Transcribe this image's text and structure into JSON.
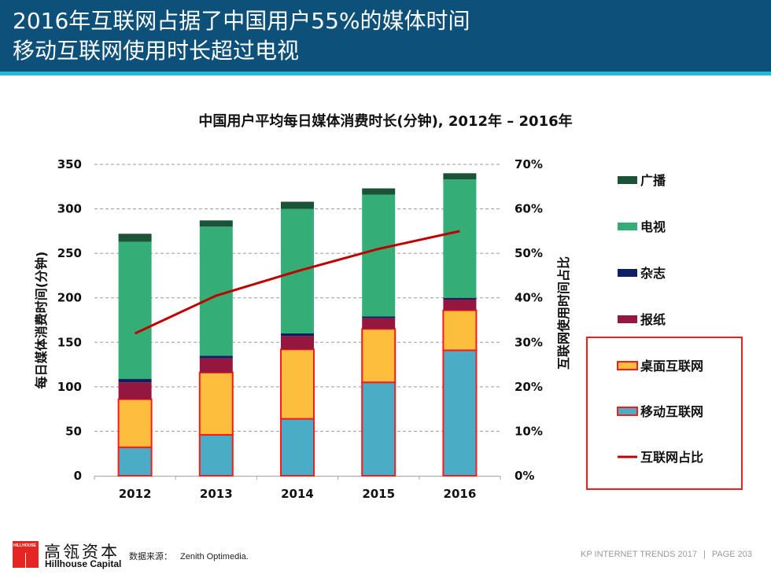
{
  "header": {
    "title_line1": "2016年互联网占据了中国用户55%的媒体时间",
    "title_line2": "移动互联网使用时长超过电视"
  },
  "chart_data": {
    "type": "bar",
    "stacked": true,
    "title": "中国用户平均每日媒体消费时长(分钟), 2012年  –  2016年",
    "categories": [
      "2012",
      "2013",
      "2014",
      "2015",
      "2016"
    ],
    "ylabel": "每日媒体消费时间(分钟)",
    "y2label": "互联网使用时间占比",
    "ylim": [
      0,
      350
    ],
    "yticks": [
      0,
      50,
      100,
      150,
      200,
      250,
      300,
      350
    ],
    "y2lim": [
      0,
      70
    ],
    "y2ticks": [
      "0%",
      "10%",
      "20%",
      "30%",
      "40%",
      "50%",
      "60%",
      "70%"
    ],
    "grid": true,
    "legend_position": "right",
    "series": [
      {
        "name": "移动互联网",
        "color": "#4bacc6",
        "outlined": true,
        "values": [
          32,
          46,
          64,
          105,
          141
        ]
      },
      {
        "name": "桌面互联网",
        "color": "#fcbe3c",
        "outlined": true,
        "values": [
          54,
          70,
          78,
          60,
          45
        ]
      },
      {
        "name": "报纸",
        "color": "#95163e",
        "values": [
          19,
          16,
          15,
          12,
          12
        ]
      },
      {
        "name": "杂志",
        "color": "#0f1f62",
        "values": [
          4,
          3,
          3,
          2,
          2
        ]
      },
      {
        "name": "电视",
        "color": "#34ad77",
        "values": [
          154,
          145,
          140,
          137,
          133
        ]
      },
      {
        "name": "广播",
        "color": "#1b5339",
        "values": [
          9,
          7,
          8,
          7,
          7
        ]
      }
    ],
    "line_series": {
      "name": "互联网占比",
      "color": "#c00000",
      "axis": "right",
      "values_percent": [
        32,
        40.5,
        46,
        51,
        55
      ]
    },
    "legend_order": [
      "广播",
      "电视",
      "杂志",
      "报纸",
      "桌面互联网",
      "移动互联网",
      "互联网占比"
    ],
    "highlight_color": "#ff1a1a"
  },
  "footer": {
    "logo_text": "HILLHOUSE",
    "brand_cn": "高瓴资本",
    "brand_en": "Hillhouse Capital",
    "source_label": "数据来源：",
    "source_value": "Zenith Optimedia.",
    "report": "KP INTERNET TRENDS 2017",
    "separator": "|",
    "page": "PAGE 203"
  }
}
